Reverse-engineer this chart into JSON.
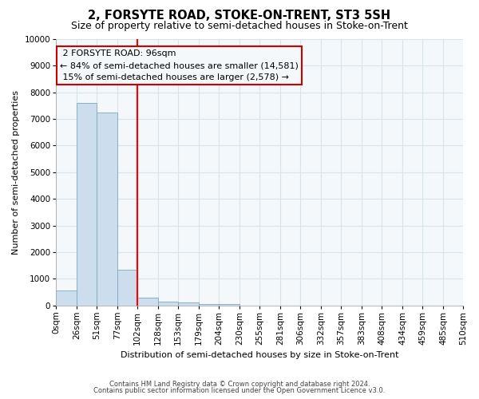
{
  "title": "2, FORSYTE ROAD, STOKE-ON-TRENT, ST3 5SH",
  "subtitle": "Size of property relative to semi-detached houses in Stoke-on-Trent",
  "xlabel": "Distribution of semi-detached houses by size in Stoke-on-Trent",
  "ylabel": "Number of semi-detached properties",
  "footnote1": "Contains HM Land Registry data © Crown copyright and database right 2024.",
  "footnote2": "Contains public sector information licensed under the Open Government Licence v3.0.",
  "bar_edges": [
    0,
    26,
    51,
    77,
    102,
    128,
    153,
    179,
    204,
    230,
    255,
    281,
    306,
    332,
    357,
    383,
    408,
    434,
    459,
    485,
    510
  ],
  "bar_heights": [
    550,
    7600,
    7250,
    1350,
    275,
    150,
    100,
    60,
    50,
    0,
    0,
    0,
    0,
    0,
    0,
    0,
    0,
    0,
    0,
    0
  ],
  "tick_labels": [
    "0sqm",
    "26sqm",
    "51sqm",
    "77sqm",
    "102sqm",
    "128sqm",
    "153sqm",
    "179sqm",
    "204sqm",
    "230sqm",
    "255sqm",
    "281sqm",
    "306sqm",
    "332sqm",
    "357sqm",
    "383sqm",
    "408sqm",
    "434sqm",
    "459sqm",
    "485sqm",
    "510sqm"
  ],
  "bar_color": "#ccdded",
  "bar_edge_color": "#7aaabf",
  "property_line_x": 102,
  "property_size": 96,
  "property_label": "2 FORSYTE ROAD: 96sqm",
  "pct_smaller": 84,
  "pct_larger": 15,
  "count_smaller": "14,581",
  "count_larger": "2,578",
  "annotation_box_color": "#cc0000",
  "ylim": [
    0,
    10000
  ],
  "yticks": [
    0,
    1000,
    2000,
    3000,
    4000,
    5000,
    6000,
    7000,
    8000,
    9000,
    10000
  ],
  "bg_color": "#ffffff",
  "plot_bg_color": "#f5f8fa",
  "grid_color": "#d8e4ec",
  "title_fontsize": 10.5,
  "subtitle_fontsize": 9,
  "axis_label_fontsize": 8,
  "tick_fontsize": 7.5,
  "annotation_fontsize": 8
}
